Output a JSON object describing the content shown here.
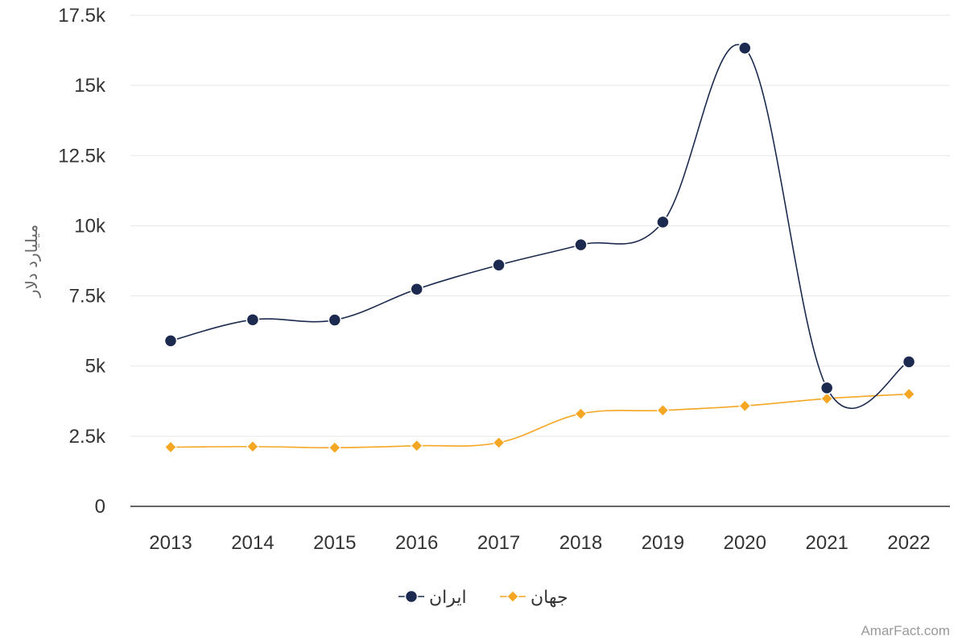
{
  "chart_data": {
    "type": "line",
    "categories": [
      "2013",
      "2014",
      "2015",
      "2016",
      "2017",
      "2018",
      "2019",
      "2020",
      "2021",
      "2022"
    ],
    "series": [
      {
        "name": "ایران",
        "color": "#1b2a4e",
        "marker": "circle",
        "values": [
          5900,
          6650,
          6640,
          7740,
          8600,
          9320,
          10130,
          16330,
          4220,
          5150
        ]
      },
      {
        "name": "جهان",
        "color": "#f5a623",
        "marker": "diamond",
        "values": [
          2110,
          2130,
          2090,
          2160,
          2270,
          3300,
          3420,
          3580,
          3840,
          4000
        ]
      }
    ],
    "ylabel": "میلیارد دلار",
    "xlabel": "",
    "ylim": [
      0,
      17500
    ],
    "yticks": [
      0,
      2500,
      5000,
      7500,
      10000,
      12500,
      15000,
      17500
    ],
    "ytick_labels": [
      "0",
      "2.5k",
      "5k",
      "7.5k",
      "10k",
      "12.5k",
      "15k",
      "17.5k"
    ],
    "grid": true,
    "legend_position": "bottom-center"
  },
  "credit": "AmarFact.com"
}
